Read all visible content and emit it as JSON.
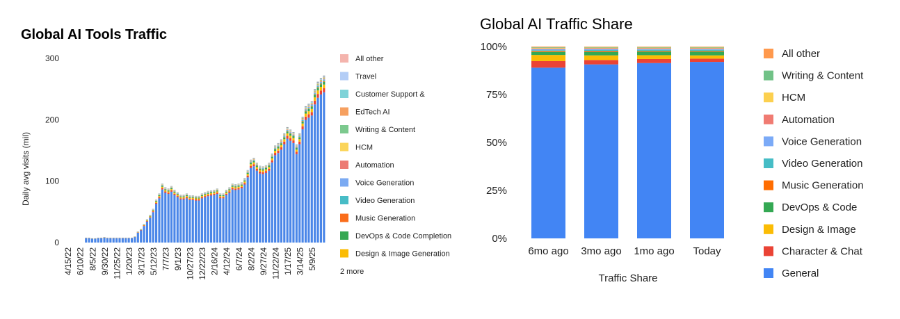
{
  "chart_data": [
    {
      "type": "bar",
      "stacked": true,
      "title": "Global AI Tools Traffic",
      "ylabel": "Daily avg visits (mil)",
      "xlabel": "",
      "ylim": [
        0,
        300
      ],
      "yticks": [
        0,
        100,
        200,
        300
      ],
      "grid": false,
      "legend_position": "right",
      "legend_more": "2 more",
      "x_tick_labels": [
        "4/15/22",
        "6/10/22",
        "8/5/22",
        "9/30/22",
        "11/25/22",
        "1/20/23",
        "3/17/23",
        "5/12/23",
        "7/7/23",
        "9/1/23",
        "10/27/23",
        "12/22/23",
        "2/16/24",
        "4/12/24",
        "6/7/24",
        "8/2/24",
        "9/27/24",
        "11/22/24",
        "1/17/25",
        "3/14/25",
        "5/9/25"
      ],
      "legend": [
        {
          "name": "All other",
          "color": "#f4b4ad"
        },
        {
          "name": "Travel",
          "color": "#b3cdf6"
        },
        {
          "name": "Customer Support &",
          "color": "#7fd3d8"
        },
        {
          "name": "EdTech AI",
          "color": "#f6a060"
        },
        {
          "name": "Writing & Content",
          "color": "#7cc98e"
        },
        {
          "name": "HCM",
          "color": "#fbd55a"
        },
        {
          "name": "Automation",
          "color": "#ec7b74"
        },
        {
          "name": "Voice Generation",
          "color": "#7baaf2"
        },
        {
          "name": "Video Generation",
          "color": "#47bcc6"
        },
        {
          "name": "Music Generation",
          "color": "#fa6d1b"
        },
        {
          "name": "DevOps & Code Completion",
          "color": "#36a853"
        },
        {
          "name": "Design & Image Generation",
          "color": "#fbbc04"
        }
      ],
      "total_daily_visits": [
        0,
        0,
        0,
        0,
        8,
        8,
        7,
        7,
        8,
        8,
        9,
        8,
        8,
        8,
        8,
        8,
        8,
        8,
        8,
        8,
        10,
        18,
        22,
        30,
        38,
        45,
        55,
        70,
        80,
        96,
        90,
        88,
        92,
        86,
        82,
        78,
        78,
        80,
        77,
        77,
        76,
        76,
        80,
        82,
        84,
        85,
        86,
        88,
        80,
        80,
        86,
        90,
        96,
        95,
        96,
        98,
        105,
        118,
        135,
        138,
        130,
        125,
        124,
        126,
        130,
        145,
        158,
        162,
        168,
        178,
        188,
        184,
        180,
        160,
        178,
        205,
        222,
        226,
        230,
        250,
        262,
        268,
        272
      ]
    },
    {
      "type": "bar",
      "stacked": true,
      "title": "Global AI Traffic Share",
      "xlabel": "Traffic Share",
      "ylabel": "",
      "ylim": [
        0,
        100
      ],
      "yticks": [
        "0%",
        "25%",
        "50%",
        "75%",
        "100%"
      ],
      "grid": false,
      "legend_position": "right",
      "categories": [
        "6mo ago",
        "3mo ago",
        "1mo ago",
        "Today"
      ],
      "series": [
        {
          "name": "General",
          "color": "#4285f4",
          "values": [
            89.0,
            90.7,
            91.4,
            92.0
          ]
        },
        {
          "name": "Character & Chat",
          "color": "#ea4335",
          "values": [
            3.4,
            2.3,
            2.1,
            1.7
          ]
        },
        {
          "name": "Design & Image",
          "color": "#fbbc04",
          "values": [
            3.2,
            2.4,
            2.0,
            1.7
          ]
        },
        {
          "name": "DevOps & Code",
          "color": "#34a853",
          "values": [
            1.6,
            1.7,
            1.8,
            1.9
          ]
        },
        {
          "name": "Music Generation",
          "color": "#ff6d01",
          "values": [
            0.5,
            0.5,
            0.4,
            0.4
          ]
        },
        {
          "name": "Video Generation",
          "color": "#46bdc6",
          "values": [
            0.4,
            0.6,
            0.6,
            0.6
          ]
        },
        {
          "name": "Voice Generation",
          "color": "#7baaf7",
          "values": [
            0.6,
            0.6,
            0.5,
            0.5
          ]
        },
        {
          "name": "Automation",
          "color": "#f07b72",
          "values": [
            0.3,
            0.3,
            0.3,
            0.3
          ]
        },
        {
          "name": "HCM",
          "color": "#fcd04f",
          "values": [
            0.3,
            0.3,
            0.3,
            0.3
          ]
        },
        {
          "name": "Writing & Content",
          "color": "#71c287",
          "values": [
            0.3,
            0.3,
            0.3,
            0.3
          ]
        },
        {
          "name": "All other",
          "color": "#ff994d",
          "values": [
            0.4,
            0.3,
            0.3,
            0.3
          ]
        }
      ]
    }
  ]
}
